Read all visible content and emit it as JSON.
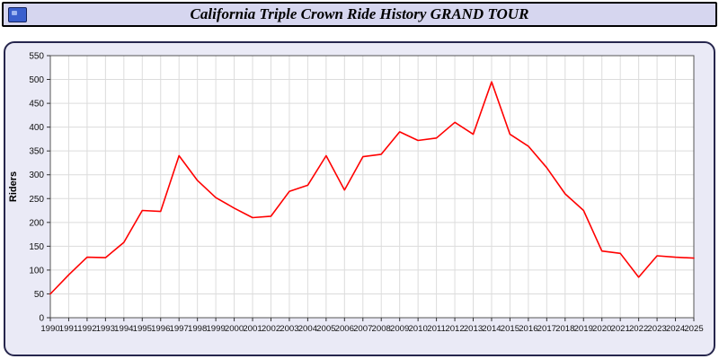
{
  "window": {
    "title": "California Triple Crown Ride History GRAND TOUR",
    "bar_color": "#d6d6ef",
    "border_color": "#000000",
    "icon": "logo-icon",
    "icon_color": "#3a5fcd"
  },
  "panel": {
    "bg_color": "#eaeaf6",
    "border_color": "#26264d"
  },
  "chart_data": {
    "type": "line",
    "title": "California Triple Crown Ride History GRAND TOUR",
    "xlabel": "",
    "ylabel": "Riders",
    "ylim": [
      0,
      550
    ],
    "ytick_step": 50,
    "yticks": [
      0,
      50,
      100,
      150,
      200,
      250,
      300,
      350,
      400,
      450,
      500,
      550
    ],
    "grid": true,
    "legend": "none",
    "plot_bg": "#ffffff",
    "grid_color": "#dcdcdc",
    "axis_color": "#555555",
    "tick_label_color": "#111111",
    "x": [
      1990,
      1991,
      1992,
      1993,
      1994,
      1995,
      1996,
      1997,
      1998,
      1999,
      2000,
      2001,
      2002,
      2003,
      2004,
      2005,
      2006,
      2007,
      2008,
      2009,
      2010,
      2011,
      2012,
      2013,
      2014,
      2015,
      2016,
      2017,
      2018,
      2019,
      2020,
      2021,
      2022,
      2023,
      2024,
      2025
    ],
    "series": [
      {
        "name": "Riders",
        "color": "#ff0000",
        "values": [
          50,
          90,
          127,
          126,
          158,
          225,
          223,
          340,
          288,
          252,
          230,
          210,
          213,
          265,
          278,
          340,
          268,
          338,
          343,
          390,
          372,
          377,
          410,
          385,
          495,
          385,
          360,
          315,
          260,
          225,
          140,
          135,
          85,
          130,
          127,
          125
        ]
      }
    ]
  }
}
